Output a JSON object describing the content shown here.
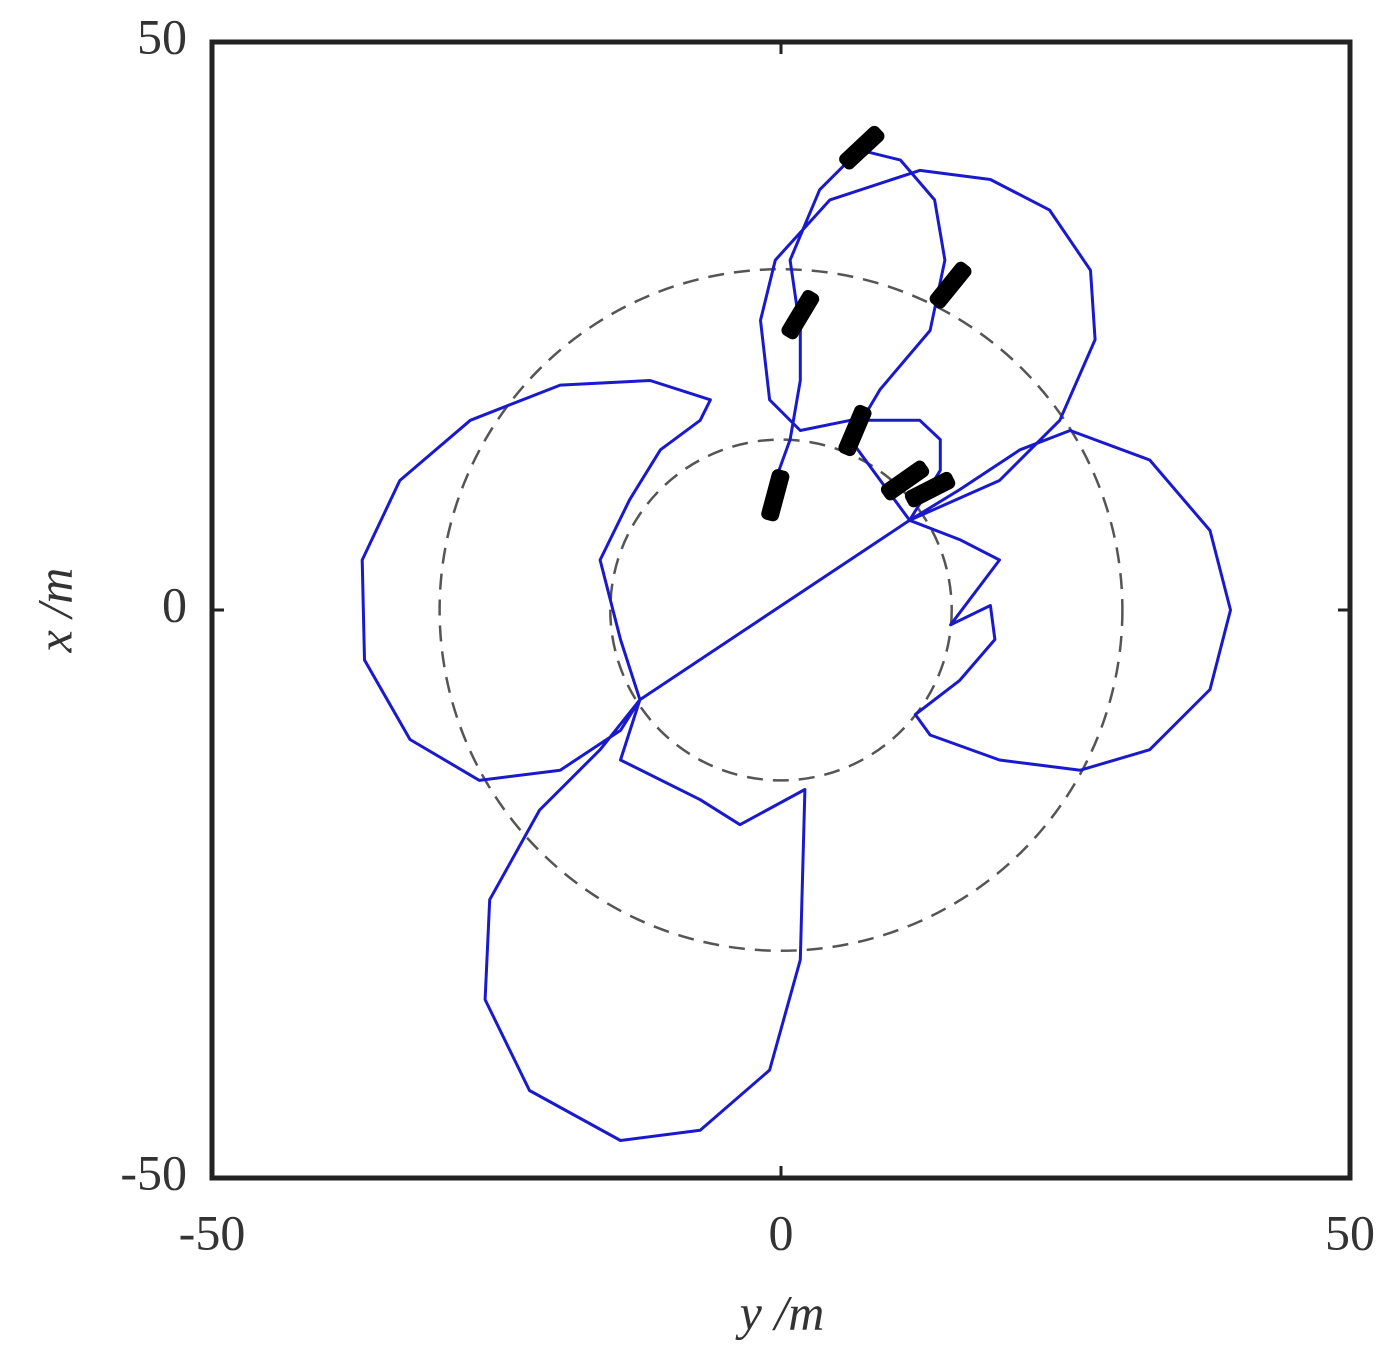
{
  "chart_data": {
    "type": "line",
    "xlabel": "y /m",
    "ylabel": "x /m",
    "xlim": [
      -50,
      50
    ],
    "ylim": [
      -50,
      50
    ],
    "xticks": [
      -50,
      0,
      50
    ],
    "yticks": [
      -50,
      0,
      50
    ],
    "reference_circles": [
      15,
      30
    ],
    "series": [
      {
        "color": "#1a1acc",
        "x": [
          -12.4,
          -14.1,
          -15.9,
          -13.3,
          -10.6,
          -7.1,
          -6.2,
          -11.5,
          -19.4,
          -27.3,
          -33.5,
          -36.8,
          -36.6,
          -32.6,
          -26.5,
          -19.4,
          -14.1,
          -12.4,
          -15.9,
          -21.2,
          -25.6,
          -26.0,
          -22.1,
          -14.1,
          -7.1,
          -1.0,
          1.7,
          2.1,
          -3.6,
          -7.1,
          -14.1,
          -12.4,
          11.3,
          15.7,
          21.0,
          25.4,
          32.4,
          37.7,
          39.5,
          37.7,
          32.4,
          26.3,
          19.2,
          13.1,
          11.8,
          15.7,
          18.8,
          18.4,
          14.9,
          19.2,
          15.7,
          11.3,
          19.2,
          24.5,
          27.6,
          27.2,
          23.6,
          18.4,
          12.2,
          4.3,
          -0.5,
          -1.8,
          -1.0,
          1.7,
          6.1,
          12.2,
          14.0,
          14.0,
          11.3,
          6.1,
          8.7,
          13.1,
          14.4,
          13.5,
          10.5,
          6.9,
          3.4,
          0.8,
          1.7,
          1.7,
          0.8,
          -0.5
        ],
        "y": [
          -7.9,
          -2.6,
          4.4,
          9.7,
          14.1,
          16.7,
          18.5,
          20.2,
          19.8,
          16.7,
          11.4,
          4.4,
          -4.4,
          -11.4,
          -15.0,
          -14.1,
          -10.6,
          -7.9,
          -12.3,
          -17.6,
          -25.5,
          -34.3,
          -42.3,
          -46.7,
          -45.8,
          -40.5,
          -30.8,
          -15.8,
          -18.9,
          -16.7,
          -13.2,
          -7.9,
          7.9,
          10.6,
          14.1,
          15.8,
          13.2,
          7.0,
          0,
          -7.0,
          -12.3,
          -14.1,
          -13.2,
          -11.0,
          -9.2,
          -6.2,
          -2.6,
          0.4,
          -1.3,
          4.4,
          6.2,
          7.9,
          11.4,
          16.7,
          23.8,
          29.9,
          35.2,
          37.9,
          38.7,
          36.1,
          30.8,
          25.5,
          18.5,
          15.8,
          16.7,
          16.7,
          15.0,
          12.3,
          7.9,
          15.0,
          19.4,
          24.6,
          30.8,
          36.1,
          39.6,
          40.5,
          37.0,
          30.8,
          24.6,
          20.2,
          15.0,
          11.4
        ]
      }
    ],
    "markers": {
      "color": "#000000",
      "x": [
        -0.5,
        6.5,
        1.7,
        14.9,
        7.1,
        10.9,
        13.1
      ],
      "y": [
        10.1,
        15.8,
        26.0,
        28.6,
        40.7,
        11.4,
        10.6
      ]
    }
  }
}
